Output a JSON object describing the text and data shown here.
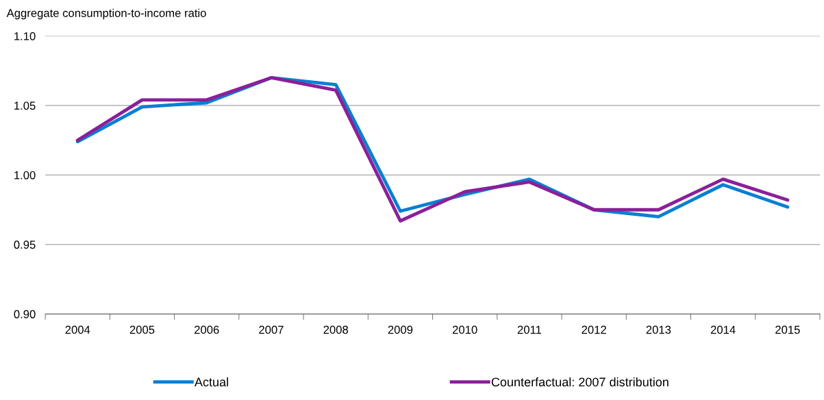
{
  "chart_data": {
    "type": "line",
    "ylabel": "Aggregate consumption-to-income ratio",
    "categories": [
      "2004",
      "2005",
      "2006",
      "2007",
      "2008",
      "2009",
      "2010",
      "2011",
      "2012",
      "2013",
      "2014",
      "2015"
    ],
    "series": [
      {
        "name": "Actual",
        "color": "#0a7fd1",
        "values": [
          1.024,
          1.049,
          1.052,
          1.07,
          1.065,
          0.974,
          0.986,
          0.997,
          0.975,
          0.97,
          0.993,
          0.977
        ]
      },
      {
        "name": "Counterfactual: 2007 distribution",
        "color": "#8b1f9a",
        "values": [
          1.025,
          1.054,
          1.054,
          1.07,
          1.061,
          0.967,
          0.988,
          0.995,
          0.975,
          0.975,
          0.997,
          0.982
        ]
      }
    ],
    "ylim": [
      0.9,
      1.1
    ],
    "yticks": [
      {
        "value": 0.9,
        "label": "0.90"
      },
      {
        "value": 0.95,
        "label": "0.95"
      },
      {
        "value": 1.0,
        "label": "1.00"
      },
      {
        "value": 1.05,
        "label": "1.05"
      },
      {
        "value": 1.1,
        "label": "1.10"
      }
    ],
    "grid": "y",
    "legend": "bottom",
    "marker": "none",
    "line_style": "solid"
  }
}
